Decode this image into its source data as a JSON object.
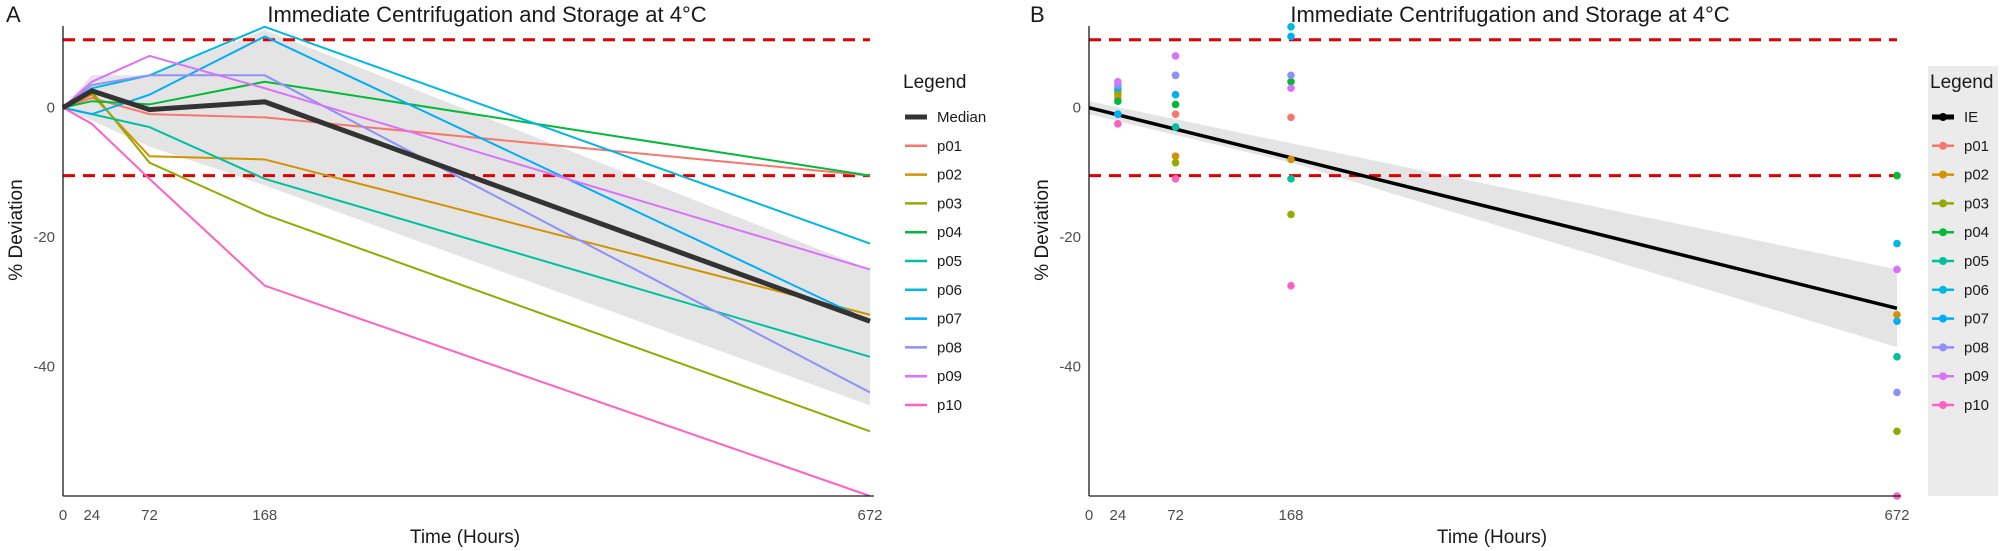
{
  "chart_data": [
    {
      "panel": "A",
      "type": "line",
      "title": "Immediate Centrifugation and Storage at 4°C",
      "xlabel": "Time (Hours)",
      "ylabel": "% Deviation",
      "x_ticks": [
        0,
        24,
        72,
        168,
        672
      ],
      "y_ticks": [
        0,
        -20,
        -40
      ],
      "xlim": [
        0,
        672
      ],
      "ylim": [
        -60,
        12
      ],
      "reference_lines": [
        10.5,
        -10.5
      ],
      "legend": {
        "title": "Legend",
        "position": "right"
      },
      "x": [
        0,
        24,
        72,
        168,
        672
      ],
      "band": {
        "upper": [
          0,
          5,
          5,
          12,
          -25
        ],
        "lower": [
          0,
          -2,
          -6,
          -12,
          -46
        ]
      },
      "median": {
        "name": "Median",
        "color": "#333333",
        "values": [
          0,
          2.6,
          -0.3,
          0.9,
          -33
        ]
      },
      "series": [
        {
          "name": "p01",
          "color": "#F8766D",
          "values": [
            0,
            1.5,
            -1,
            -1.5,
            -10.5
          ]
        },
        {
          "name": "p02",
          "color": "#D39200",
          "values": [
            0,
            2,
            -7.5,
            -8,
            -32
          ]
        },
        {
          "name": "p03",
          "color": "#93AA00",
          "values": [
            0,
            2.5,
            -8.5,
            -16.5,
            -50
          ]
        },
        {
          "name": "p04",
          "color": "#00BA38",
          "values": [
            0,
            1,
            0.5,
            4,
            -10.5
          ]
        },
        {
          "name": "p05",
          "color": "#00C19F",
          "values": [
            0,
            -1,
            -3,
            -11,
            -38.5
          ]
        },
        {
          "name": "p06",
          "color": "#00B9E3",
          "values": [
            0,
            3,
            5,
            12.5,
            -21
          ]
        },
        {
          "name": "p07",
          "color": "#00ADFA",
          "values": [
            0,
            -1,
            2,
            11,
            -33
          ]
        },
        {
          "name": "p08",
          "color": "#8F91F8",
          "values": [
            0,
            3.5,
            5,
            5,
            -44
          ]
        },
        {
          "name": "p09",
          "color": "#DB72FB",
          "values": [
            0,
            4,
            8,
            3,
            -25
          ]
        },
        {
          "name": "p10",
          "color": "#FF61C3",
          "values": [
            0,
            -2.5,
            -11,
            -27.5,
            -60
          ]
        }
      ]
    },
    {
      "panel": "B",
      "type": "scatter",
      "title": "Immediate Centrifugation and Storage at 4°C",
      "xlabel": "Time (Hours)",
      "ylabel": "% Deviation",
      "x_ticks": [
        0,
        24,
        72,
        168,
        672
      ],
      "y_ticks": [
        0,
        -20,
        -40
      ],
      "xlim": [
        0,
        672
      ],
      "ylim": [
        -60,
        12
      ],
      "reference_lines": [
        10.5,
        -10.5
      ],
      "legend": {
        "title": "Legend",
        "position": "right"
      },
      "x": [
        24,
        72,
        168,
        672
      ],
      "fit": {
        "name": "IE",
        "color": "#000000",
        "x": [
          0,
          672
        ],
        "values": [
          0,
          -31
        ]
      },
      "band": {
        "x": [
          0,
          168,
          672
        ],
        "upper": [
          1,
          -5.5,
          -25
        ],
        "lower": [
          -1,
          -8.5,
          -37
        ]
      },
      "series": [
        {
          "name": "p01",
          "color": "#F8766D",
          "values": [
            1.5,
            -1,
            -1.5,
            -10.5
          ]
        },
        {
          "name": "p02",
          "color": "#D39200",
          "values": [
            2,
            -7.5,
            -8,
            -32
          ]
        },
        {
          "name": "p03",
          "color": "#93AA00",
          "values": [
            2.5,
            -8.5,
            -16.5,
            -50
          ]
        },
        {
          "name": "p04",
          "color": "#00BA38",
          "values": [
            1,
            0.5,
            4,
            -10.5
          ]
        },
        {
          "name": "p05",
          "color": "#00C19F",
          "values": [
            -1,
            -3,
            -11,
            -38.5
          ]
        },
        {
          "name": "p06",
          "color": "#00B9E3",
          "values": [
            3,
            5,
            12.5,
            -21
          ]
        },
        {
          "name": "p07",
          "color": "#00ADFA",
          "values": [
            -1,
            2,
            11,
            -33
          ]
        },
        {
          "name": "p08",
          "color": "#8F91F8",
          "values": [
            3.5,
            5,
            5,
            -44
          ]
        },
        {
          "name": "p09",
          "color": "#DB72FB",
          "values": [
            4,
            8,
            3,
            -25
          ]
        },
        {
          "name": "p10",
          "color": "#FF61C3",
          "values": [
            -2.5,
            -11,
            -27.5,
            -60
          ]
        }
      ]
    }
  ]
}
